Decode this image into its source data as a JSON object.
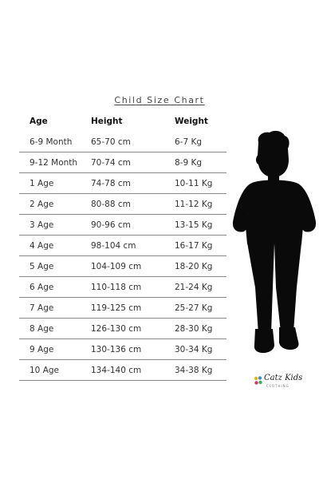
{
  "title": "Child Size Chart",
  "headers": {
    "age": "Age",
    "height": "Height",
    "weight": "Weight"
  },
  "rows": [
    {
      "age": "6-9 Month",
      "height": "65-70 cm",
      "weight": "6-7 Kg"
    },
    {
      "age": "9-12 Month",
      "height": "70-74 cm",
      "weight": "8-9 Kg"
    },
    {
      "age": "1 Age",
      "height": "74-78 cm",
      "weight": "10-11 Kg"
    },
    {
      "age": "2 Age",
      "height": "80-88 cm",
      "weight": "11-12 Kg"
    },
    {
      "age": "3 Age",
      "height": "90-96 cm",
      "weight": "13-15 Kg"
    },
    {
      "age": "4 Age",
      "height": "98-104 cm",
      "weight": "16-17 Kg"
    },
    {
      "age": "5 Age",
      "height": "104-109 cm",
      "weight": "18-20 Kg"
    },
    {
      "age": "6 Age",
      "height": "110-118 cm",
      "weight": "21-24 Kg"
    },
    {
      "age": "7 Age",
      "height": "119-125 cm",
      "weight": "25-27 Kg"
    },
    {
      "age": "8 Age",
      "height": "126-130 cm",
      "weight": "28-30 Kg"
    },
    {
      "age": "9 Age",
      "height": "130-136 cm",
      "weight": "30-34 Kg"
    },
    {
      "age": "10 Age",
      "height": "134-140 cm",
      "weight": "34-38 Kg"
    }
  ],
  "brand": {
    "name": "Catz Kids",
    "tagline": "CLOTHING",
    "dot_colors": [
      "#e8b400",
      "#3a8fd0",
      "#d6336c",
      "#3cae5a"
    ]
  },
  "images": {
    "silhouette": "child-silhouette"
  },
  "colors": {
    "background": "#ffffff",
    "text": "#222222",
    "rule": "#8a8a8a",
    "silhouette": "#0a0a0a"
  }
}
